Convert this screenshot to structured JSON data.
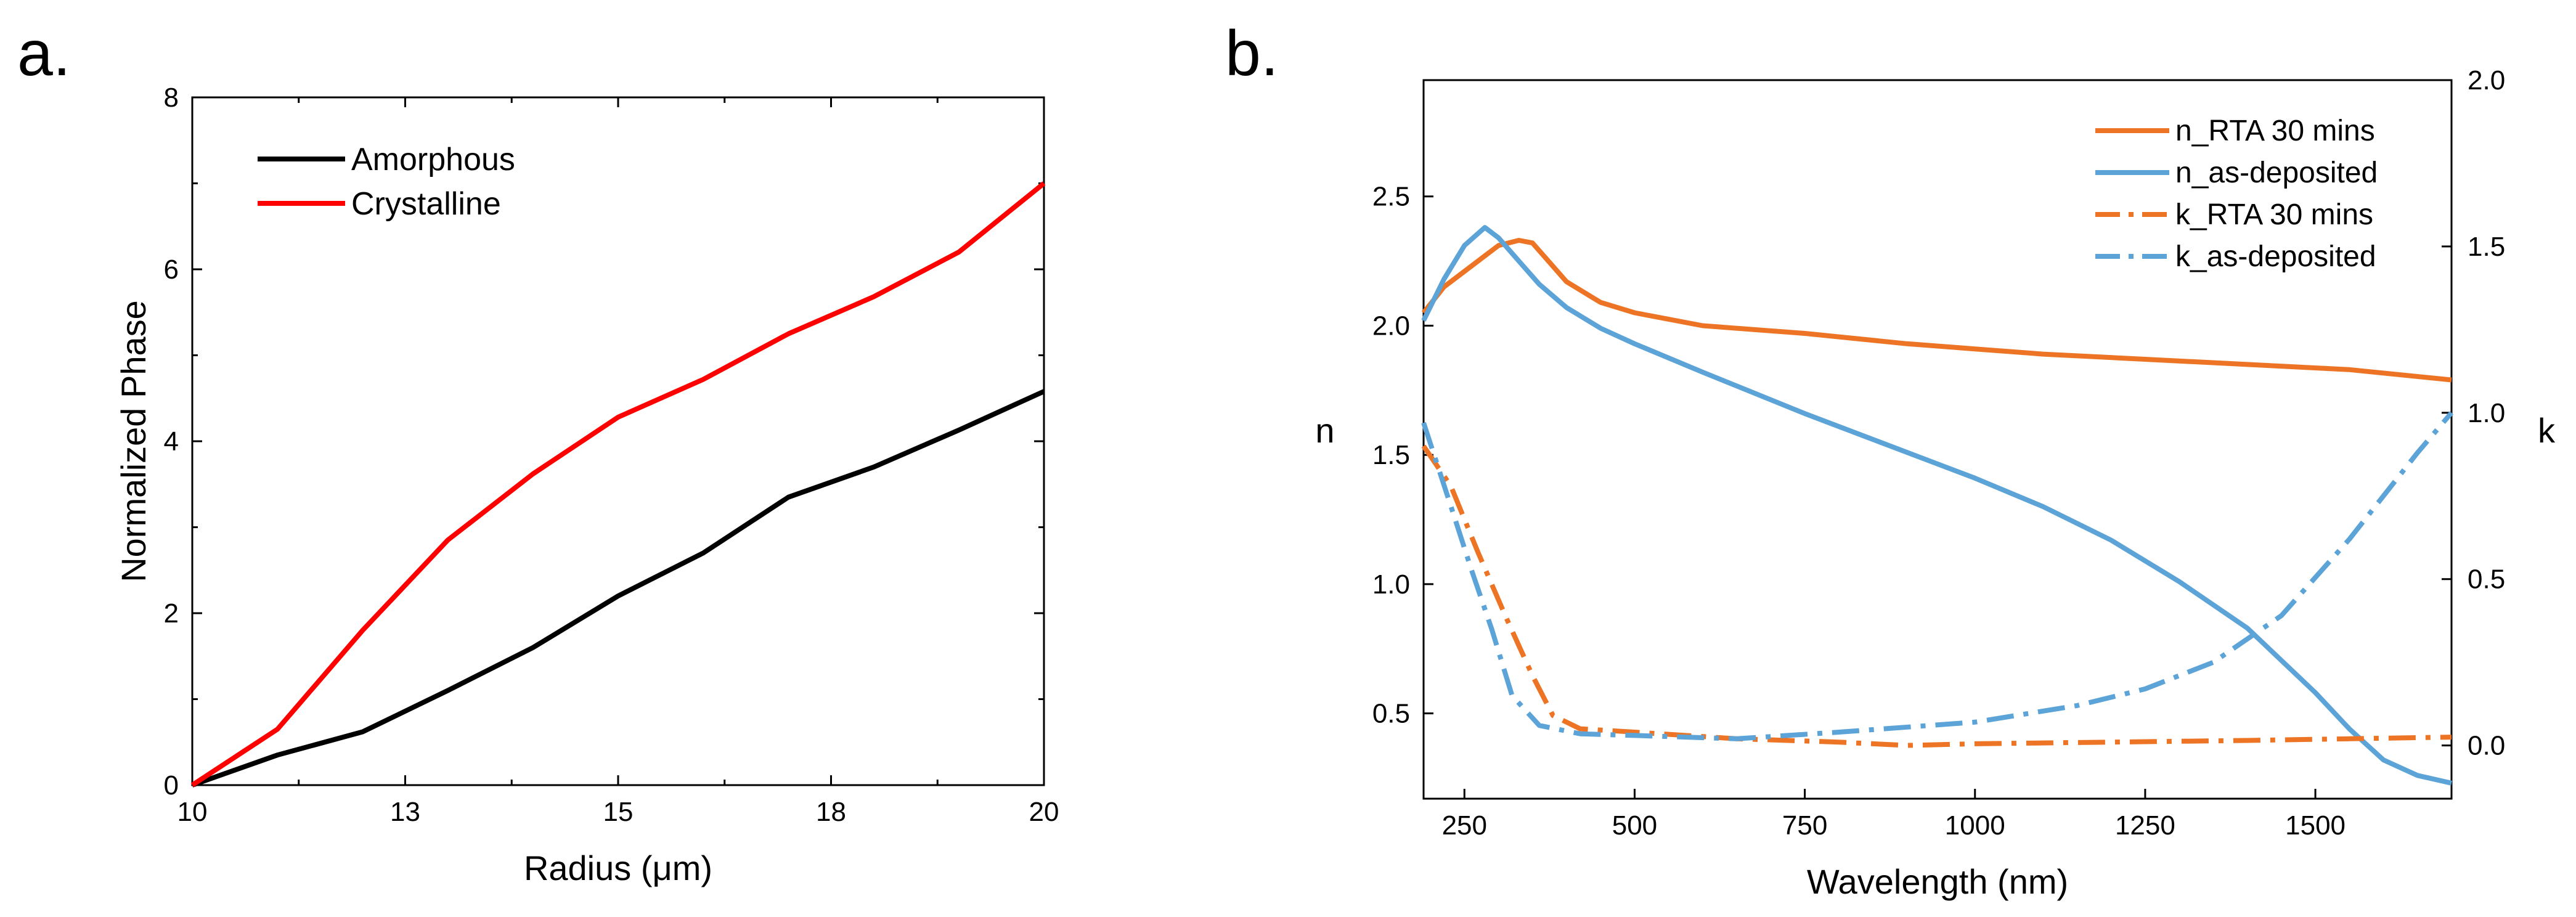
{
  "figure": {
    "panel_a_label": "a.",
    "panel_b_label": "b."
  },
  "chart_data": [
    {
      "type": "line",
      "panel": "a.",
      "title": "",
      "xlabel": "Radius (μm)",
      "ylabel": "Normalized Phase",
      "xlim": [
        10,
        20
      ],
      "ylim": [
        0,
        8
      ],
      "x_ticks": [
        10,
        12.5,
        15,
        17.5,
        20
      ],
      "x_tick_labels": [
        "10",
        "13",
        "15",
        "18",
        "20"
      ],
      "y_ticks": [
        0,
        2,
        4,
        6,
        8
      ],
      "y_tick_labels": [
        "0",
        "2",
        "4",
        "6",
        "8"
      ],
      "legend_position": "top-left",
      "series": [
        {
          "name": "Amorphous",
          "color": "#000000",
          "dash": "solid",
          "x": [
            10,
            11,
            12,
            13,
            14,
            15,
            16,
            17,
            18,
            19,
            20
          ],
          "y": [
            0,
            0.35,
            0.62,
            1.1,
            1.6,
            2.2,
            2.7,
            3.35,
            3.7,
            4.13,
            4.58
          ]
        },
        {
          "name": "Crystalline",
          "color": "#ff0000",
          "dash": "solid",
          "x": [
            10,
            11,
            12,
            13,
            14,
            15,
            16,
            17,
            18,
            19,
            20
          ],
          "y": [
            0,
            0.65,
            1.8,
            2.85,
            3.62,
            4.28,
            4.72,
            5.25,
            5.68,
            6.2,
            7.0
          ]
        }
      ]
    },
    {
      "type": "line",
      "panel": "b.",
      "title": "",
      "xlabel": "Wavelength (nm)",
      "ylabel": "n",
      "y2label": "k",
      "xlim": [
        190,
        1700
      ],
      "ylim": [
        0.17,
        2.95
      ],
      "y2lim": [
        -0.16,
        2.0
      ],
      "x_ticks": [
        250,
        500,
        750,
        1000,
        1250,
        1500
      ],
      "x_tick_labels": [
        "250",
        "500",
        "750",
        "1000",
        "1250",
        "1500"
      ],
      "y_ticks": [
        0.5,
        1.0,
        1.5,
        2.0,
        2.5
      ],
      "y_tick_labels": [
        "0.5",
        "1.0",
        "1.5",
        "2.0",
        "2.5"
      ],
      "y2_ticks": [
        0.0,
        0.5,
        1.0,
        1.5,
        2.0
      ],
      "y2_tick_labels": [
        "0.0",
        "0.5",
        "1.0",
        "1.5",
        "2.0"
      ],
      "legend_position": "top-right",
      "series": [
        {
          "name": "n_RTA 30 mins",
          "axis": "left",
          "color": "#ec7424",
          "dash": "solid",
          "x": [
            190,
            220,
            260,
            300,
            330,
            350,
            370,
            400,
            450,
            500,
            600,
            750,
            900,
            1000,
            1100,
            1250,
            1400,
            1550,
            1700
          ],
          "y": [
            2.05,
            2.15,
            2.23,
            2.31,
            2.33,
            2.32,
            2.26,
            2.17,
            2.09,
            2.05,
            2.0,
            1.97,
            1.93,
            1.91,
            1.89,
            1.87,
            1.85,
            1.83,
            1.79
          ]
        },
        {
          "name": "n_as-deposited",
          "axis": "left",
          "color": "#5ca3d7",
          "dash": "solid",
          "x": [
            190,
            220,
            250,
            280,
            300,
            330,
            360,
            400,
            450,
            500,
            600,
            750,
            900,
            1000,
            1100,
            1200,
            1300,
            1400,
            1500,
            1550,
            1600,
            1650,
            1700
          ],
          "y": [
            2.02,
            2.18,
            2.31,
            2.38,
            2.34,
            2.25,
            2.16,
            2.07,
            1.99,
            1.93,
            1.82,
            1.66,
            1.51,
            1.41,
            1.3,
            1.17,
            1.01,
            0.83,
            0.58,
            0.44,
            0.32,
            0.26,
            0.23
          ]
        },
        {
          "name": "k_RTA 30 mins",
          "axis": "right",
          "color": "#ec7424",
          "dash": "dashdot",
          "x": [
            190,
            230,
            270,
            310,
            350,
            380,
            420,
            500,
            650,
            800,
            900,
            1000,
            1200,
            1400,
            1550,
            1700
          ],
          "y": [
            0.9,
            0.78,
            0.58,
            0.39,
            0.21,
            0.09,
            0.05,
            0.04,
            0.02,
            0.01,
            0.0,
            0.005,
            0.01,
            0.015,
            0.02,
            0.025
          ]
        },
        {
          "name": "k_as-deposited",
          "axis": "right",
          "color": "#5ca3d7",
          "dash": "dashdot",
          "x": [
            190,
            230,
            260,
            290,
            320,
            360,
            420,
            500,
            650,
            800,
            1000,
            1150,
            1250,
            1350,
            1450,
            1550,
            1650,
            1700
          ],
          "y": [
            0.97,
            0.72,
            0.53,
            0.35,
            0.15,
            0.06,
            0.035,
            0.03,
            0.02,
            0.04,
            0.07,
            0.12,
            0.17,
            0.25,
            0.39,
            0.62,
            0.88,
            1.0
          ]
        }
      ]
    }
  ]
}
